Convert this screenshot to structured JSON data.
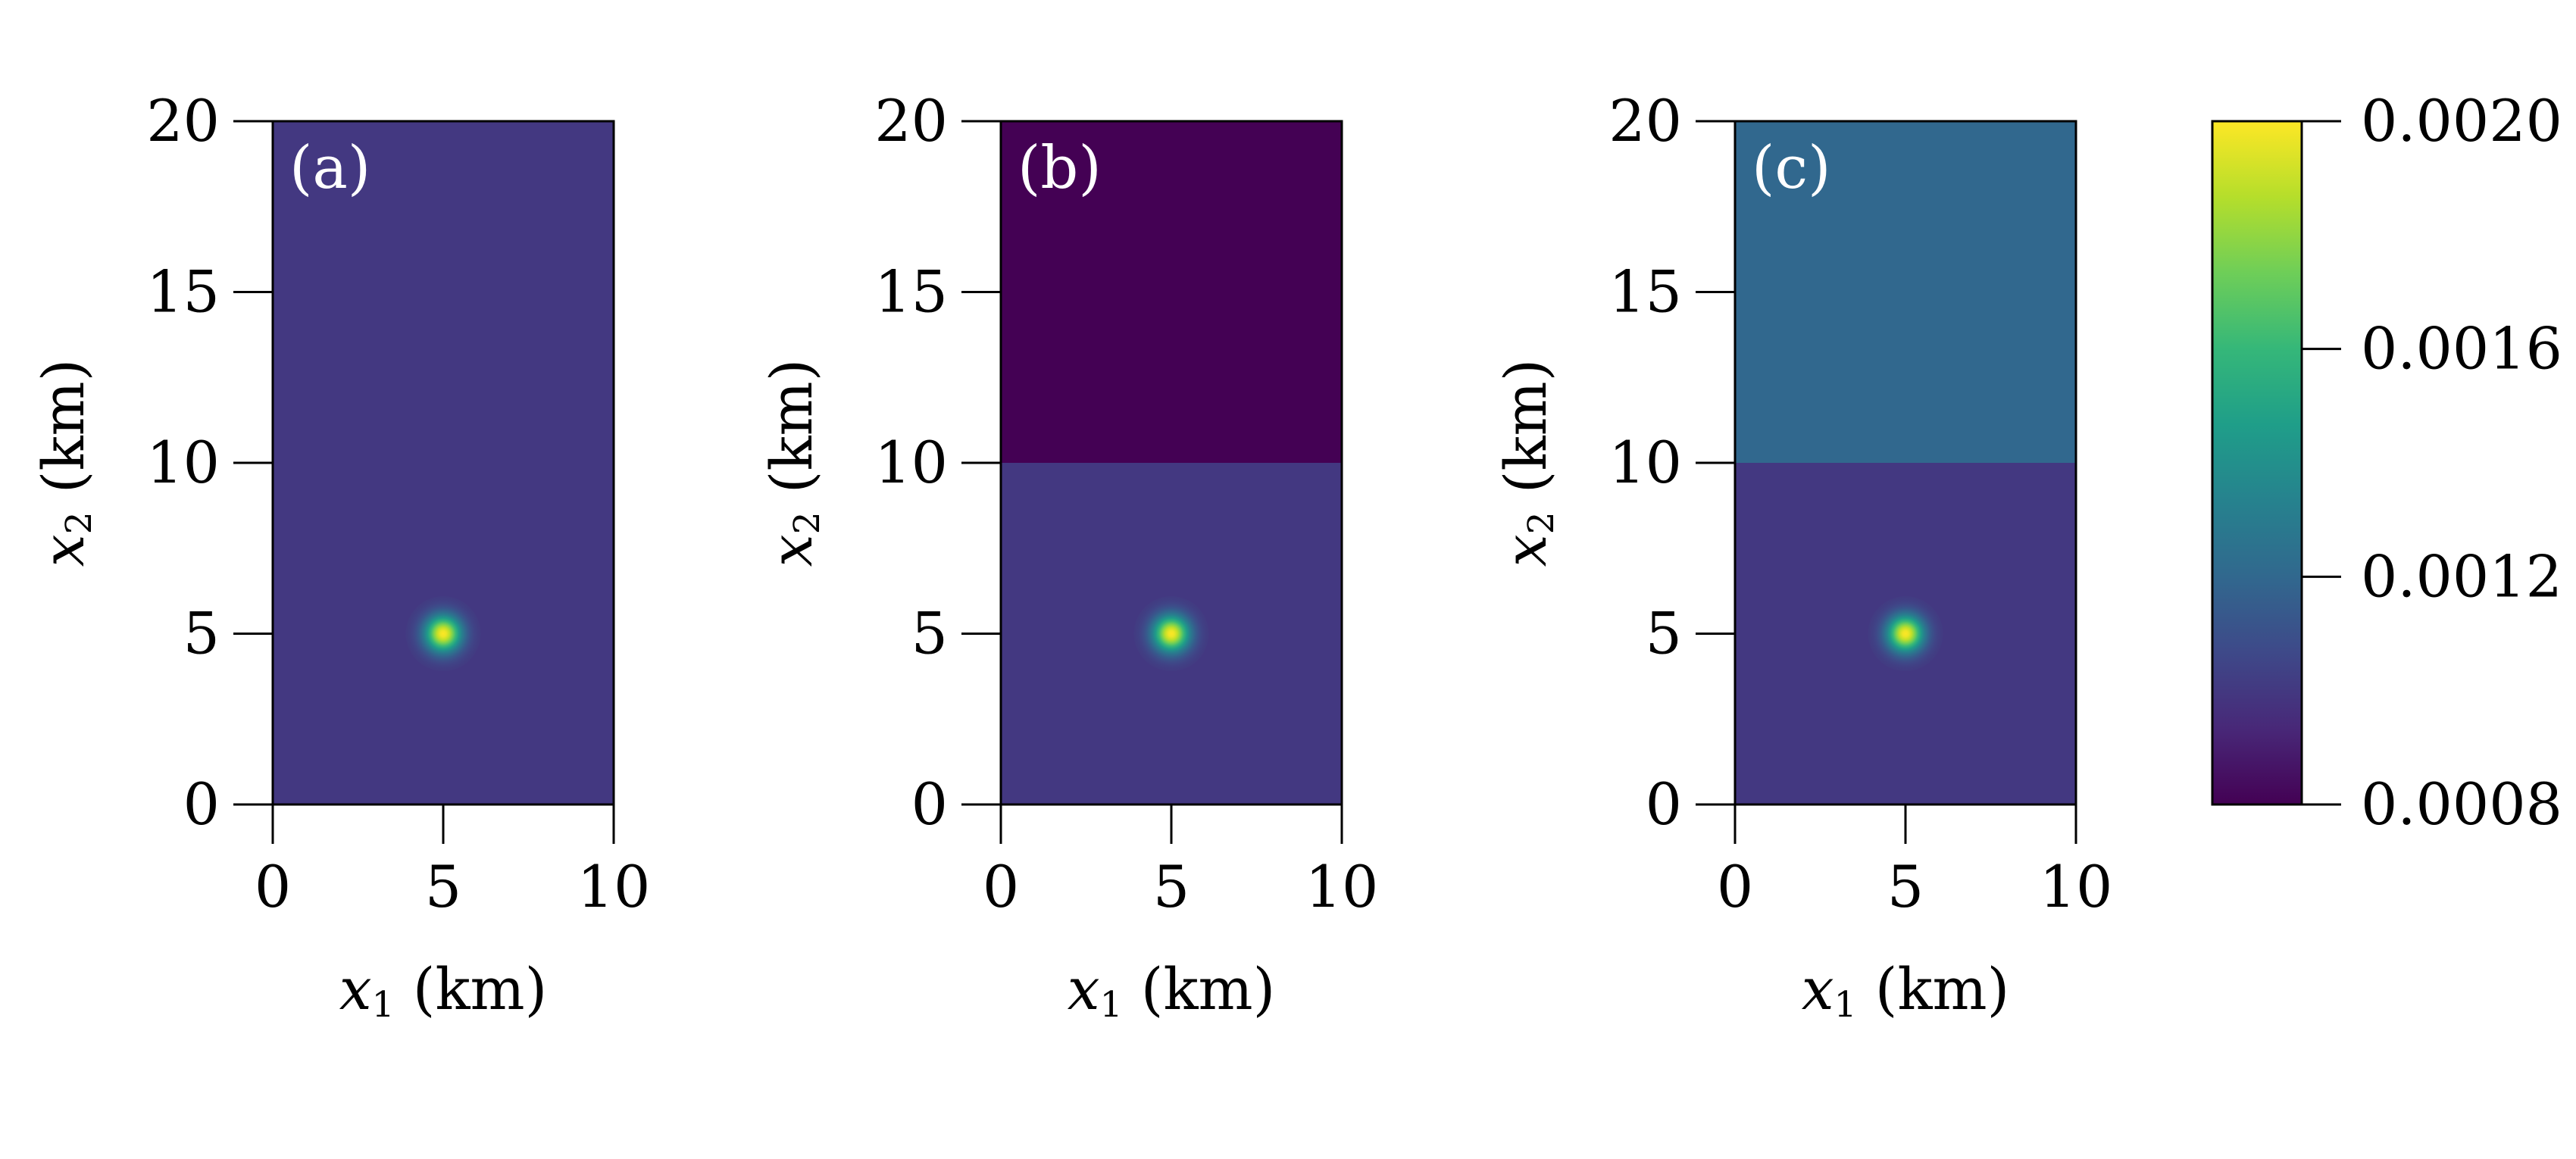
{
  "chart_data": [
    {
      "type": "heatmap",
      "panel_label": "(a)",
      "xlabel": "x1 (km)",
      "ylabel": "x2 (km)",
      "xlim": [
        0,
        10
      ],
      "ylim": [
        0,
        20
      ],
      "xticks": [
        "0",
        "5",
        "10"
      ],
      "yticks": [
        "0",
        "5",
        "10",
        "15",
        "20"
      ],
      "regions": [
        {
          "x2_range": [
            0,
            20
          ],
          "value": 0.001
        }
      ],
      "anomaly": {
        "center": [
          5,
          5
        ],
        "peak_value": 0.002,
        "radius_km": 1.1
      }
    },
    {
      "type": "heatmap",
      "panel_label": "(b)",
      "xlabel": "x1 (km)",
      "ylabel": "x2 (km)",
      "xlim": [
        0,
        10
      ],
      "ylim": [
        0,
        20
      ],
      "xticks": [
        "0",
        "5",
        "10"
      ],
      "yticks": [
        "0",
        "5",
        "10",
        "15",
        "20"
      ],
      "regions": [
        {
          "x2_range": [
            0,
            10
          ],
          "value": 0.001
        },
        {
          "x2_range": [
            10,
            20
          ],
          "value": 0.0008
        }
      ],
      "anomaly": {
        "center": [
          5,
          5
        ],
        "peak_value": 0.002,
        "radius_km": 1.1
      }
    },
    {
      "type": "heatmap",
      "panel_label": "(c)",
      "xlabel": "x1 (km)",
      "ylabel": "x2 (km)",
      "xlim": [
        0,
        10
      ],
      "ylim": [
        0,
        20
      ],
      "xticks": [
        "0",
        "5",
        "10"
      ],
      "yticks": [
        "0",
        "5",
        "10",
        "15",
        "20"
      ],
      "regions": [
        {
          "x2_range": [
            0,
            10
          ],
          "value": 0.001
        },
        {
          "x2_range": [
            10,
            20
          ],
          "value": 0.0012
        }
      ],
      "anomaly": {
        "center": [
          5,
          5
        ],
        "peak_value": 0.002,
        "radius_km": 1.1
      }
    }
  ],
  "colorbar": {
    "colormap": "viridis",
    "range": [
      0.0008,
      0.002
    ],
    "ticks": [
      0.0008,
      0.0012,
      0.0016,
      0.002
    ],
    "tick_labels": [
      "0.0008",
      "0.0012",
      "0.0016",
      "0.0020"
    ]
  },
  "colors": {
    "viridis": [
      "#440154",
      "#482878",
      "#3e4989",
      "#31688e",
      "#26828e",
      "#1f9e89",
      "#35b779",
      "#6ece58",
      "#b5de2b",
      "#fde725"
    ],
    "panel_label": "#ffffff",
    "axis": "#000000"
  }
}
